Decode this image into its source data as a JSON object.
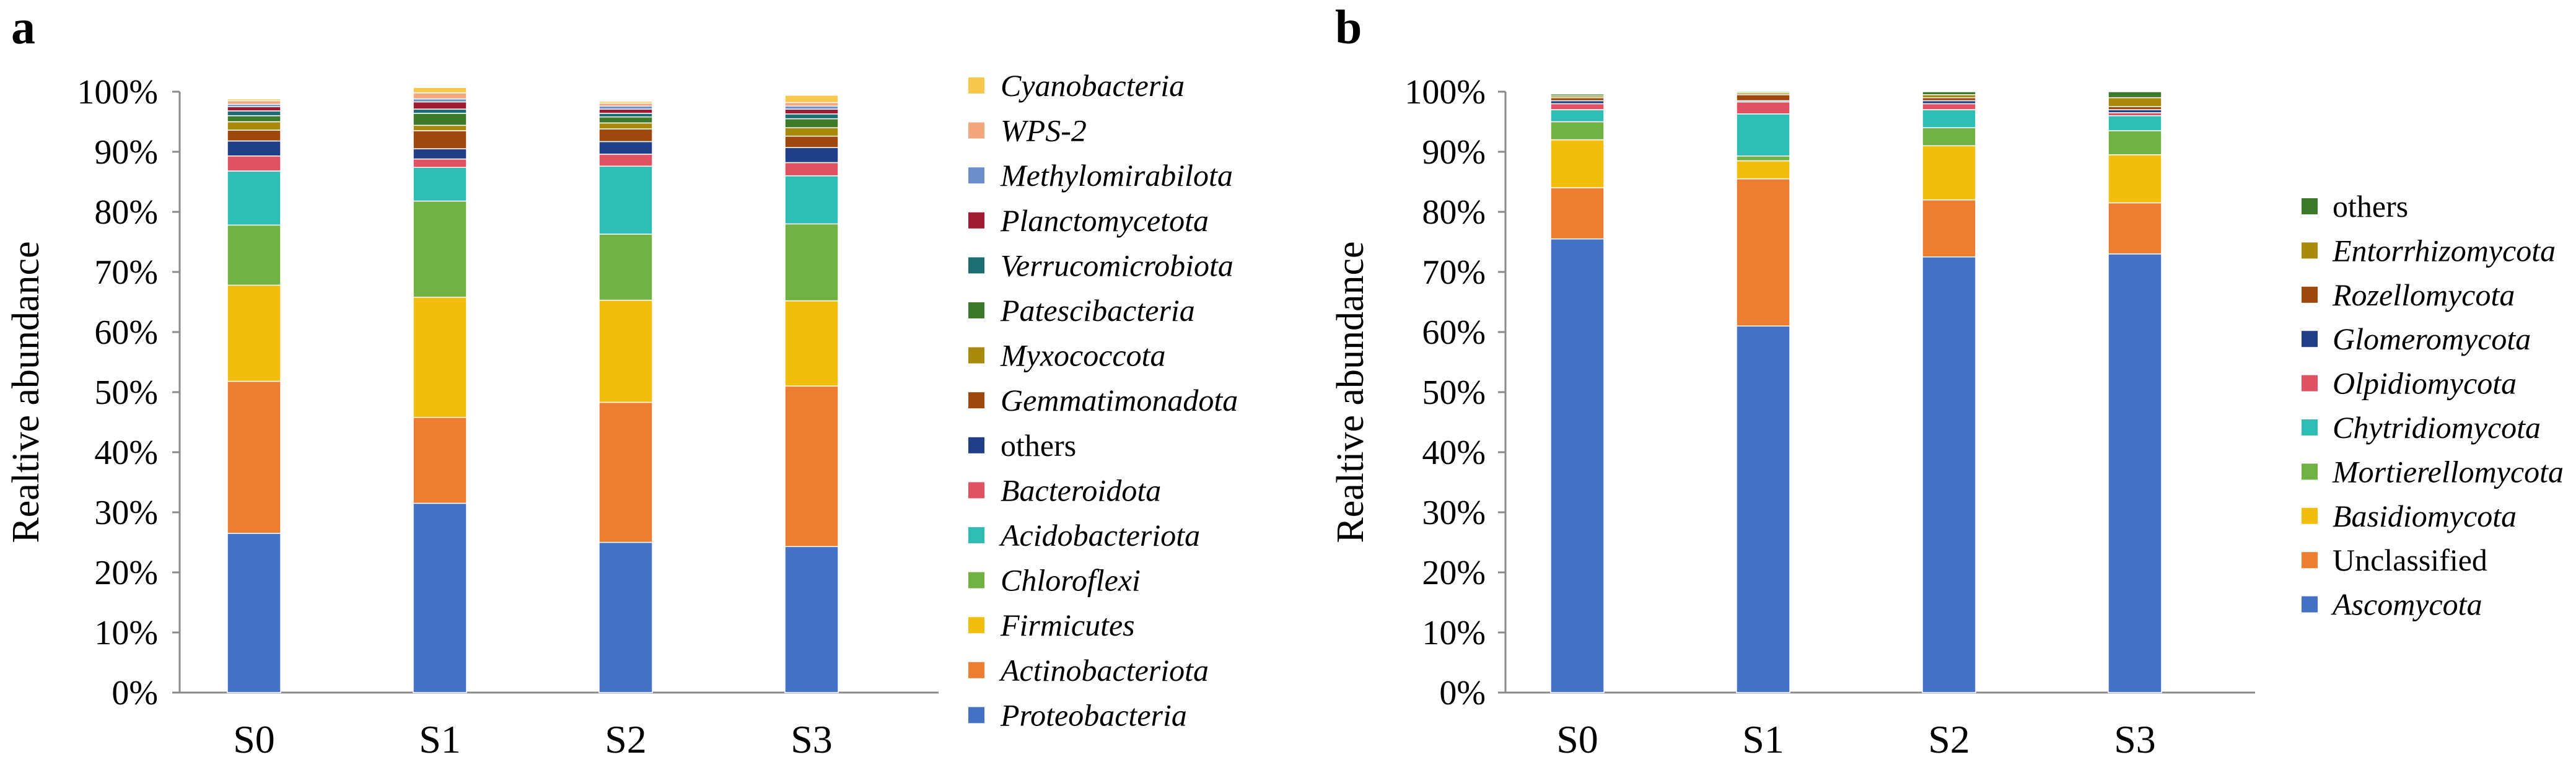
{
  "chart_data": [
    {
      "panel_label": "a",
      "type": "bar",
      "stacked": true,
      "ylabel": "Realtive abundance",
      "ylim": [
        0,
        100
      ],
      "yticks": [
        "0%",
        "10%",
        "20%",
        "30%",
        "40%",
        "50%",
        "60%",
        "70%",
        "80%",
        "90%",
        "100%"
      ],
      "categories": [
        "S0",
        "S1",
        "S2",
        "S3"
      ],
      "series": [
        {
          "name": "Proteobacteria",
          "italic": true,
          "color": "#4472C4",
          "values": [
            26.5,
            31.5,
            25.0,
            24.3
          ]
        },
        {
          "name": "Actinobacteriota",
          "italic": true,
          "color": "#ED7D31",
          "values": [
            25.3,
            14.3,
            23.3,
            26.7
          ]
        },
        {
          "name": "Firmicutes",
          "italic": true,
          "color": "#F2BE0E",
          "values": [
            16.0,
            20.0,
            17.0,
            14.2
          ]
        },
        {
          "name": "Chloroflexi",
          "italic": true,
          "color": "#72B144",
          "values": [
            10.0,
            16.0,
            11.0,
            12.8
          ]
        },
        {
          "name": "Acidobacteriota",
          "italic": true,
          "color": "#2FBEB3",
          "values": [
            9.0,
            5.6,
            11.3,
            8.0
          ]
        },
        {
          "name": "Bacteroidota",
          "italic": true,
          "color": "#E05263",
          "values": [
            2.5,
            1.4,
            2.0,
            2.2
          ]
        },
        {
          "name": "others",
          "italic": false,
          "color": "#213F86",
          "values": [
            2.5,
            1.7,
            2.1,
            2.5
          ]
        },
        {
          "name": "Gemmatimonadota",
          "italic": true,
          "color": "#9E480E",
          "values": [
            1.8,
            3.0,
            2.1,
            1.9
          ]
        },
        {
          "name": "Myxococcota",
          "italic": true,
          "color": "#A78A0A",
          "values": [
            1.4,
            0.9,
            1.0,
            1.4
          ]
        },
        {
          "name": "Patescibacteria",
          "italic": true,
          "color": "#3D7A2A",
          "values": [
            1.0,
            2.0,
            1.0,
            1.5
          ]
        },
        {
          "name": "Verrucomicrobiota",
          "italic": true,
          "color": "#1C6E73",
          "values": [
            0.8,
            0.7,
            0.6,
            0.8
          ]
        },
        {
          "name": "Planctomycetota",
          "italic": true,
          "color": "#9E1B32",
          "values": [
            0.7,
            1.2,
            0.7,
            0.8
          ]
        },
        {
          "name": "Methylomirabilota",
          "italic": true,
          "color": "#6F8FCB",
          "values": [
            0.4,
            0.5,
            0.5,
            0.5
          ]
        },
        {
          "name": "WPS-2",
          "italic": true,
          "color": "#F4A77C",
          "values": [
            0.6,
            1.0,
            0.5,
            0.6
          ]
        },
        {
          "name": "Cyanobacteria",
          "italic": true,
          "color": "#F7C84C",
          "values": [
            0.3,
            0.9,
            0.3,
            1.2
          ]
        }
      ]
    },
    {
      "panel_label": "b",
      "type": "bar",
      "stacked": true,
      "ylabel": "Realtive abundance",
      "ylim": [
        0,
        100
      ],
      "yticks": [
        "0%",
        "10%",
        "20%",
        "30%",
        "40%",
        "50%",
        "60%",
        "70%",
        "80%",
        "90%",
        "100%"
      ],
      "categories": [
        "S0",
        "S1",
        "S2",
        "S3"
      ],
      "series": [
        {
          "name": "Ascomycota",
          "italic": true,
          "color": "#4472C4",
          "values": [
            75.5,
            61.0,
            72.5,
            73.0
          ]
        },
        {
          "name": "Unclassified",
          "italic": false,
          "color": "#ED7D31",
          "values": [
            8.5,
            24.5,
            9.5,
            8.5
          ]
        },
        {
          "name": "Basidiomycota",
          "italic": true,
          "color": "#F2BE0E",
          "values": [
            8.0,
            3.0,
            9.0,
            8.0
          ]
        },
        {
          "name": "Mortierellomycota",
          "italic": true,
          "color": "#72B144",
          "values": [
            3.0,
            0.8,
            3.0,
            4.0
          ]
        },
        {
          "name": "Chytridiomycota",
          "italic": true,
          "color": "#2FBEB3",
          "values": [
            2.0,
            7.0,
            3.0,
            2.5
          ]
        },
        {
          "name": "Olpidiomycota",
          "italic": true,
          "color": "#E05263",
          "values": [
            1.0,
            2.0,
            1.0,
            0.5
          ]
        },
        {
          "name": "Glomeromycota",
          "italic": true,
          "color": "#213F86",
          "values": [
            0.5,
            0.2,
            0.5,
            0.5
          ]
        },
        {
          "name": "Rozellomycota",
          "italic": true,
          "color": "#9E480E",
          "values": [
            0.5,
            1.0,
            0.5,
            0.5
          ]
        },
        {
          "name": "Entorrhizomycota",
          "italic": true,
          "color": "#A78A0A",
          "values": [
            0.3,
            0.3,
            0.5,
            1.5
          ]
        },
        {
          "name": "others",
          "italic": false,
          "color": "#3D7A2A",
          "values": [
            0.3,
            0.2,
            0.5,
            1.0
          ]
        }
      ]
    }
  ]
}
